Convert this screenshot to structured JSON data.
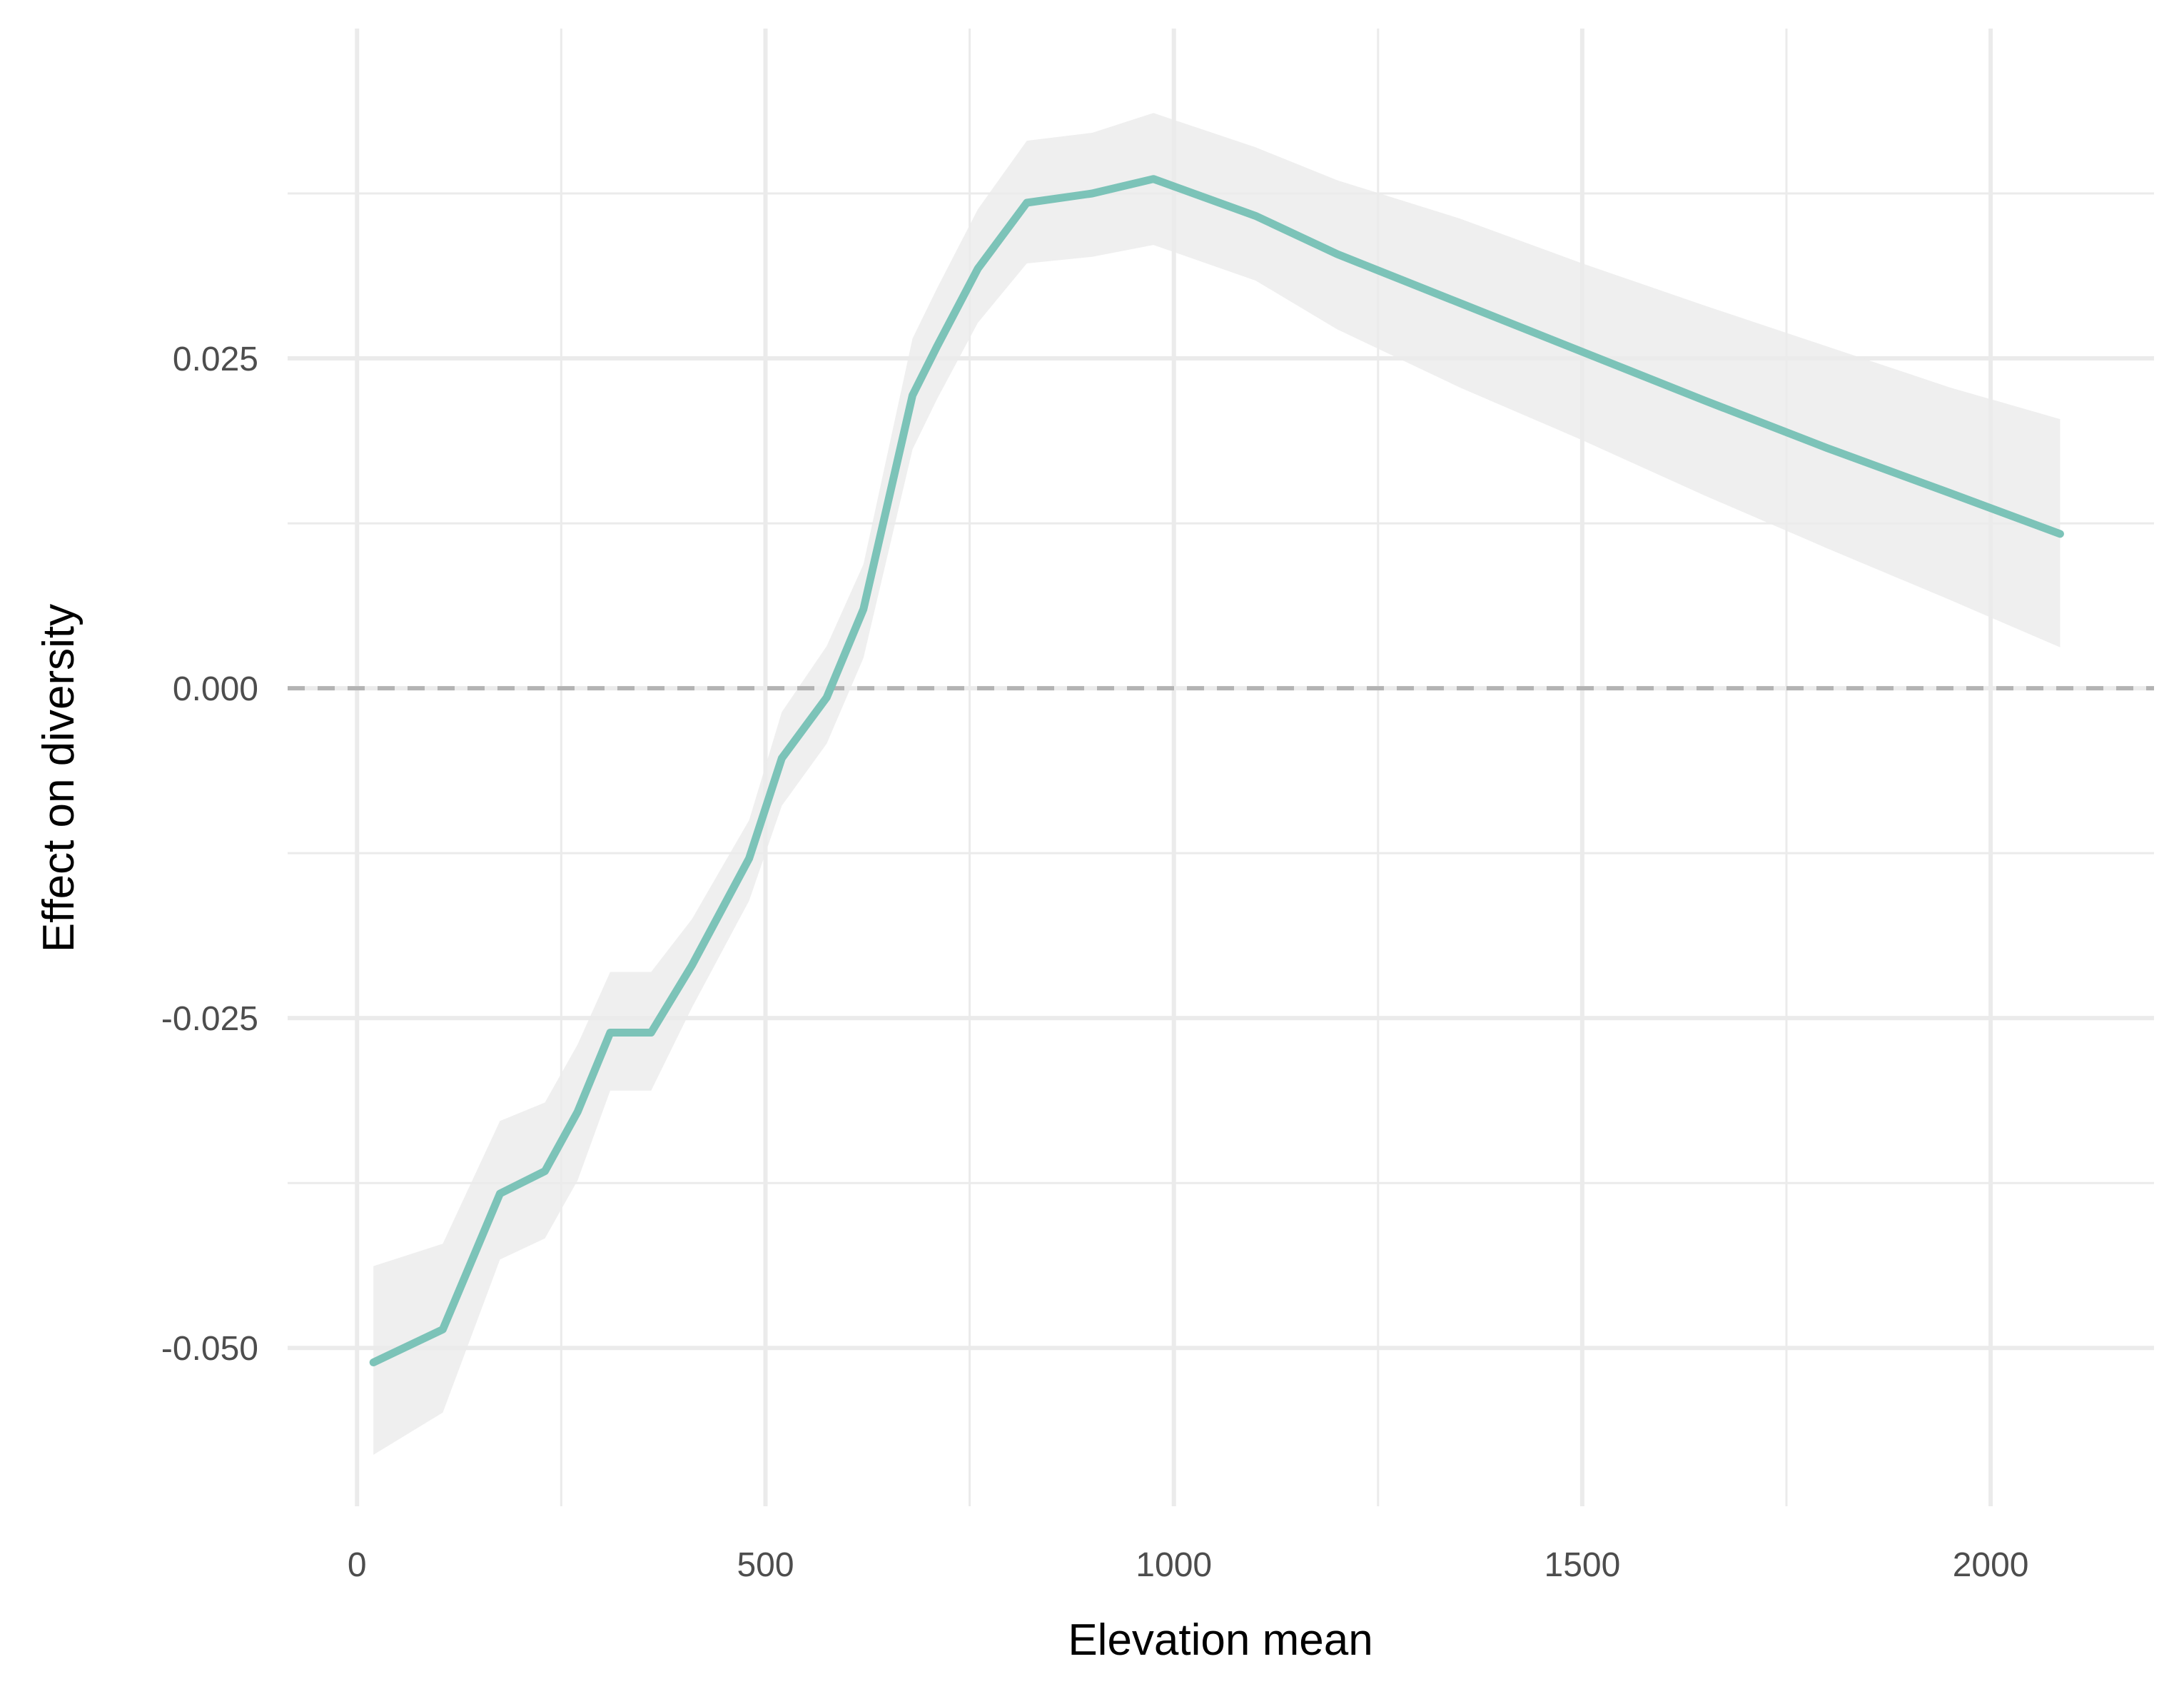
{
  "chart_data": {
    "type": "line",
    "title": "",
    "xlabel": "Elevation mean",
    "ylabel": "Effect on diversity",
    "xlim": [
      -85,
      2200
    ],
    "ylim": [
      -0.062,
      0.05
    ],
    "x_ticks": [
      0,
      500,
      1000,
      1500,
      2000
    ],
    "x_tick_labels": [
      "0",
      "500",
      "1000",
      "1500",
      "2000"
    ],
    "y_ticks": [
      -0.05,
      -0.025,
      0.0,
      0.025
    ],
    "y_tick_labels": [
      "-0.050",
      "-0.025",
      "0.000",
      "0.025"
    ],
    "grid": true,
    "legend": "none",
    "reference_line": {
      "y": 0,
      "style": "dashed",
      "color": "#b3b3b3"
    },
    "series": [
      {
        "x": [
          20,
          105,
          175,
          230,
          270,
          310,
          360,
          410,
          480,
          520,
          575,
          620,
          680,
          710,
          760,
          820,
          900,
          975,
          1100,
          1200,
          1350,
          1500,
          1650,
          1800,
          1950,
          2085
        ],
        "values": [
          -0.0511,
          -0.0486,
          -0.0383,
          -0.0366,
          -0.0321,
          -0.0261,
          -0.0261,
          -0.021,
          -0.0129,
          -0.0053,
          -0.0007,
          0.006,
          0.0222,
          0.0259,
          0.0318,
          0.0368,
          0.0375,
          0.0386,
          0.0358,
          0.0329,
          0.0292,
          0.0255,
          0.0218,
          0.0182,
          0.0148,
          0.0117
        ],
        "lower": [
          -0.0581,
          -0.0549,
          -0.0433,
          -0.0417,
          -0.0373,
          -0.0305,
          -0.0305,
          -0.0242,
          -0.0161,
          -0.0089,
          -0.0042,
          0.0023,
          0.0181,
          0.0219,
          0.0277,
          0.0322,
          0.0327,
          0.0336,
          0.0309,
          0.0272,
          0.0228,
          0.0188,
          0.0146,
          0.0106,
          0.0067,
          0.0031
        ],
        "upper": [
          -0.0438,
          -0.0421,
          -0.0328,
          -0.0314,
          -0.027,
          -0.0215,
          -0.0215,
          -0.0175,
          -0.01,
          -0.0018,
          0.0032,
          0.0094,
          0.0265,
          0.0303,
          0.0363,
          0.0415,
          0.0421,
          0.0436,
          0.041,
          0.0385,
          0.0356,
          0.0322,
          0.029,
          0.0259,
          0.0228,
          0.0204
        ]
      }
    ],
    "colors": {
      "line": "#7cc3b8",
      "band": "#ebebeb",
      "grid": "#ebebeb",
      "tick_text": "#4d4d4d"
    }
  }
}
